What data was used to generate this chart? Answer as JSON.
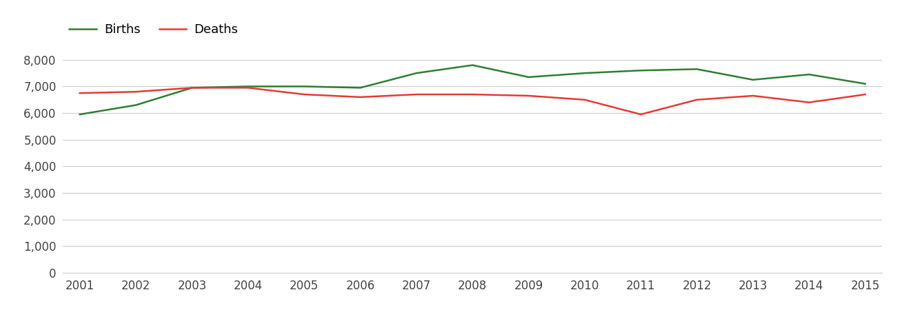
{
  "years": [
    2001,
    2002,
    2003,
    2004,
    2005,
    2006,
    2007,
    2008,
    2009,
    2010,
    2011,
    2012,
    2013,
    2014,
    2015
  ],
  "births": [
    5950,
    6300,
    6950,
    7000,
    7000,
    6950,
    7500,
    7800,
    7350,
    7500,
    7600,
    7650,
    7250,
    7450,
    7100
  ],
  "deaths": [
    6750,
    6800,
    6950,
    6950,
    6700,
    6600,
    6700,
    6700,
    6650,
    6500,
    5950,
    6500,
    6650,
    6400,
    6700
  ],
  "births_color": "#2e7d32",
  "deaths_color": "#e53935",
  "background_color": "#ffffff",
  "grid_color": "#cccccc",
  "legend_labels": [
    "Births",
    "Deaths"
  ],
  "ylim": [
    0,
    8500
  ],
  "yticks": [
    0,
    1000,
    2000,
    3000,
    4000,
    5000,
    6000,
    7000,
    8000
  ],
  "line_width": 1.8,
  "tick_fontsize": 12,
  "legend_fontsize": 13
}
